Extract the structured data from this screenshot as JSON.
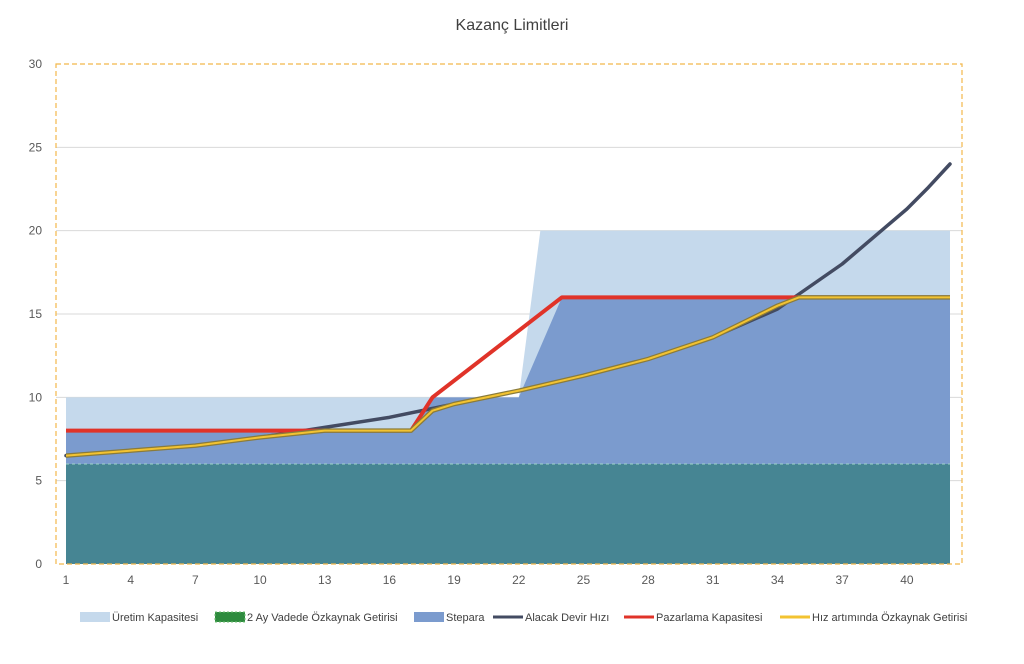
{
  "chart_data": {
    "type": "area",
    "title": "Kazanç Limitleri",
    "xlabel": "",
    "ylabel": "",
    "xlim": [
      1,
      42
    ],
    "ylim": [
      0,
      30
    ],
    "y_ticks": [
      0,
      5,
      10,
      15,
      20,
      25,
      30
    ],
    "y_tick_labels": [
      "0",
      "5",
      "10",
      "15",
      "20",
      "25",
      "30"
    ],
    "x_ticks": [
      1,
      4,
      7,
      10,
      13,
      16,
      19,
      22,
      25,
      28,
      31,
      34,
      37,
      40
    ],
    "x_tick_labels": [
      "1",
      "4",
      "7",
      "10",
      "13",
      "16",
      "19",
      "22",
      "25",
      "28",
      "31",
      "34",
      "37",
      "40"
    ],
    "grid": "horizontal",
    "legend_position": "bottom",
    "colors": {
      "uretim": "#c5d9ec",
      "ozkaynak": "#468593",
      "stepara": "#7b9bce",
      "alacak": "#434b62",
      "pazarlama": "#e03329",
      "hiz": "#f3c331",
      "border": "#f2b84b",
      "grid": "#d9d9d9"
    },
    "series": [
      {
        "name": "Üretim Kapasitesi",
        "kind": "area",
        "x": [
          1,
          22,
          23,
          42
        ],
        "y": [
          10,
          10,
          20,
          20
        ]
      },
      {
        "name": "2 Ay Vadede Özkaynak Getirisi",
        "kind": "area",
        "x": [
          1,
          42
        ],
        "y": [
          6,
          6
        ]
      },
      {
        "name": "Stepara",
        "kind": "area",
        "x": [
          1,
          17,
          18,
          22,
          24,
          42
        ],
        "y": [
          8,
          8,
          10,
          10,
          16,
          16
        ]
      },
      {
        "name": "Alacak Devir Hızı",
        "kind": "line",
        "x": [
          1,
          4,
          7,
          10,
          13,
          16,
          19,
          22,
          25,
          28,
          31,
          34,
          35,
          37,
          39,
          40,
          41,
          42
        ],
        "y": [
          6.5,
          6.8,
          7.1,
          7.6,
          8.2,
          8.8,
          9.6,
          10.4,
          11.3,
          12.3,
          13.6,
          15.3,
          16.2,
          18.0,
          20.2,
          21.3,
          22.6,
          24.0
        ]
      },
      {
        "name": "Pazarlama Kapasitesi",
        "kind": "line",
        "x": [
          1,
          17,
          18,
          24,
          42
        ],
        "y": [
          8,
          8,
          10,
          16,
          16
        ]
      },
      {
        "name": "Hız artımında Özkaynak Getirisi",
        "kind": "line",
        "x": [
          1,
          4,
          7,
          10,
          13,
          17,
          18,
          19,
          22,
          25,
          28,
          31,
          34,
          35,
          42
        ],
        "y": [
          6.5,
          6.8,
          7.1,
          7.6,
          8.0,
          8.0,
          9.2,
          9.6,
          10.4,
          11.3,
          12.3,
          13.6,
          15.5,
          16.0,
          16.0
        ]
      }
    ]
  }
}
